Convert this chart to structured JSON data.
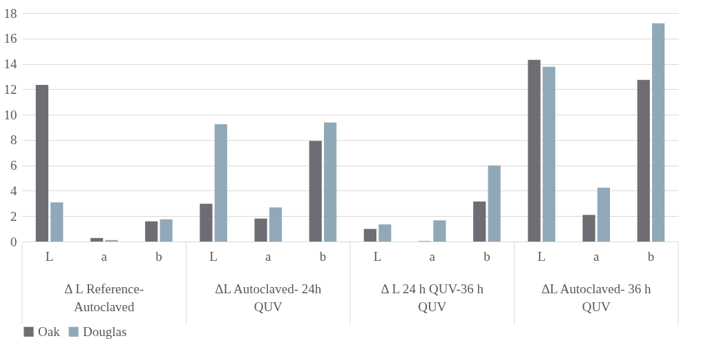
{
  "chart_data": {
    "type": "bar",
    "categories": [
      "L",
      "a",
      "b",
      "L",
      "a",
      "b",
      "L",
      "a",
      "b",
      "L",
      "a",
      "b"
    ],
    "series": [
      {
        "name": "Oak",
        "color": "#6e6d73",
        "values": [
          12.34,
          0.28,
          1.59,
          2.98,
          1.81,
          7.92,
          0.99,
          0.03,
          3.15,
          14.32,
          2.1,
          12.74
        ]
      },
      {
        "name": "Douglas",
        "color": "#91a8b8",
        "values": [
          3.09,
          0.12,
          1.75,
          9.24,
          2.69,
          9.38,
          1.35,
          1.67,
          6.0,
          13.77,
          4.24,
          17.2
        ]
      }
    ],
    "annotations": [
      "Δ L Reference-Autoclaved",
      "ΔL Autoclaved- 24h QUV",
      "Δ L 24 h QUV-36 h QUV",
      "ΔL Autoclaved- 36 h QUV"
    ],
    "ylim": [
      0,
      18
    ],
    "yticks": [
      0,
      2,
      4,
      6,
      8,
      10,
      12,
      14,
      16,
      18
    ],
    "grid": "y",
    "legend": "bottom"
  }
}
